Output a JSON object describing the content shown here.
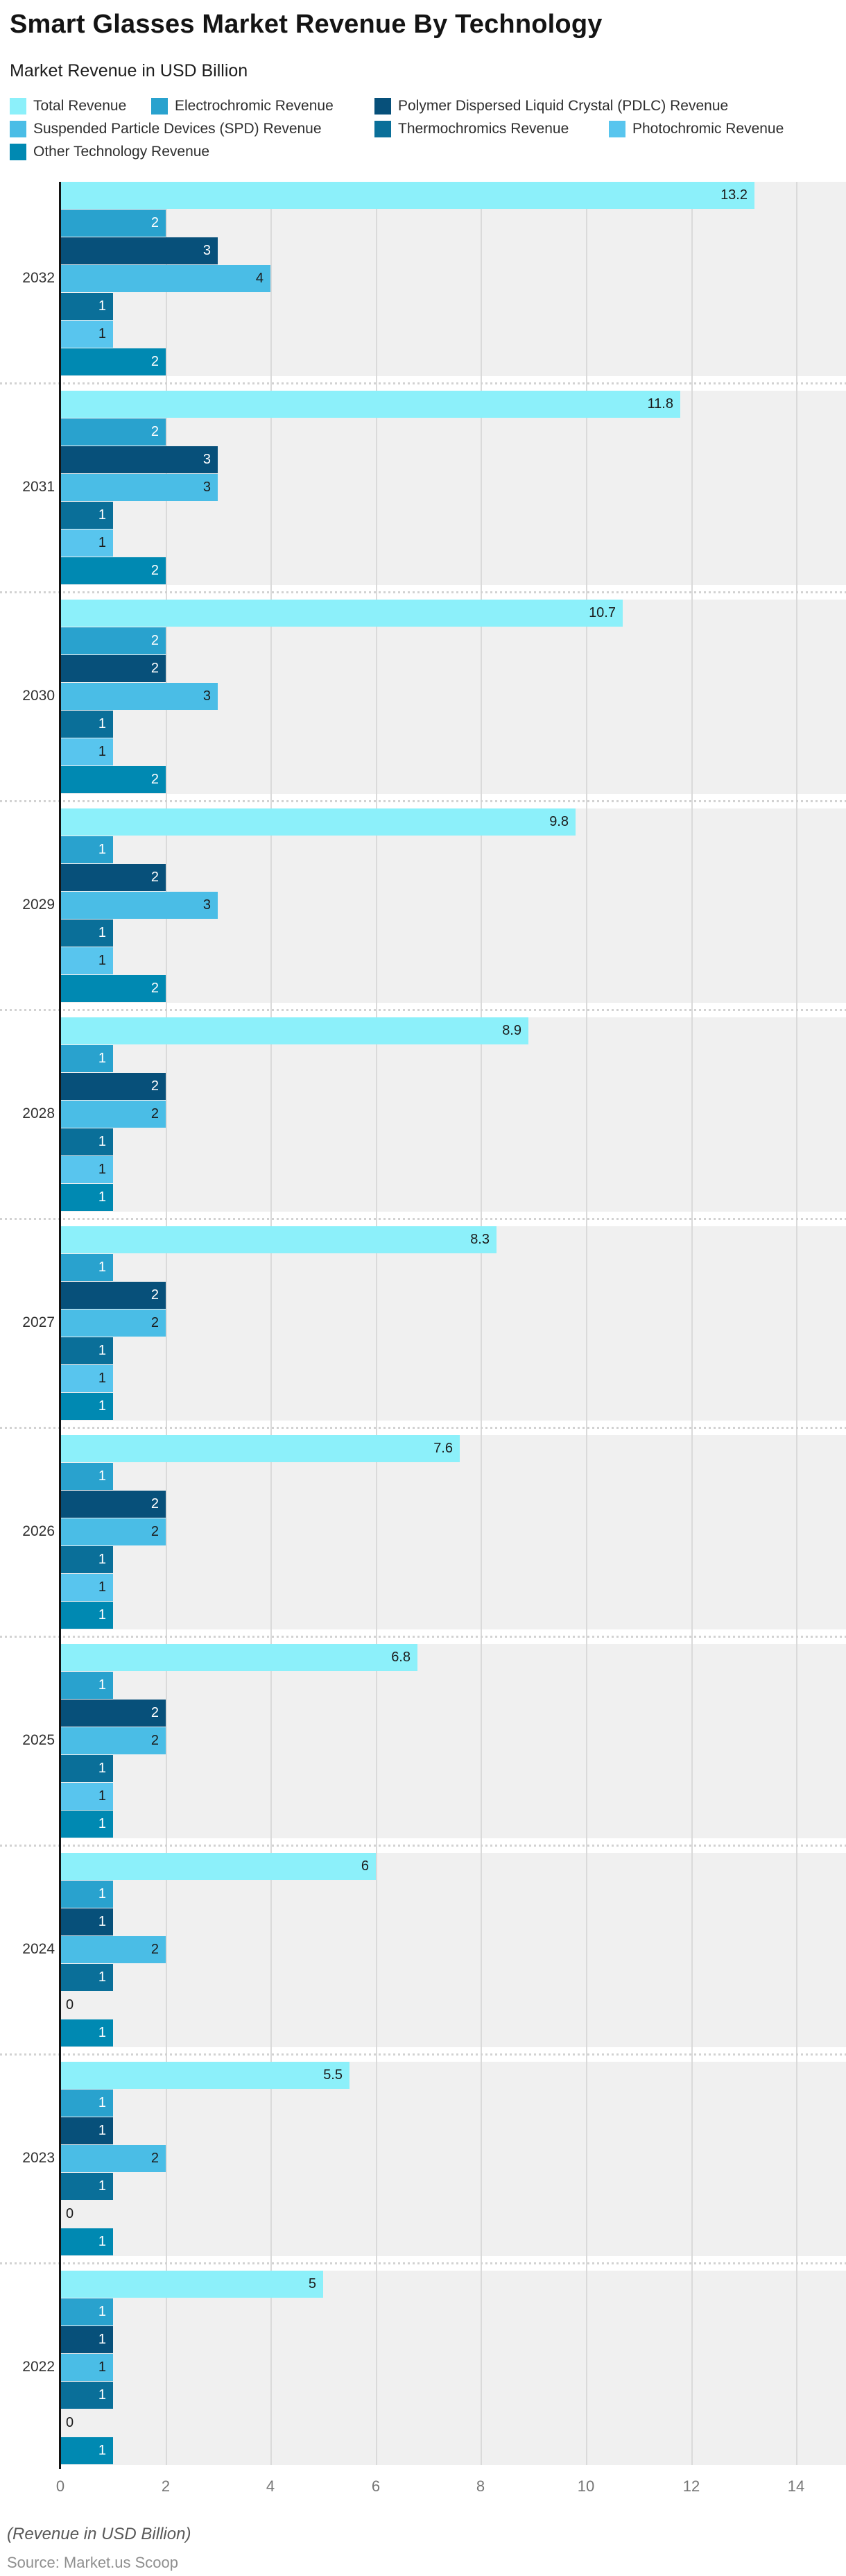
{
  "header": {
    "title": "Smart Glasses Market Revenue By Technology",
    "subtitle": "Market Revenue in USD Billion"
  },
  "footer": {
    "note": "(Revenue in USD Billion)",
    "source": "Source: Market.us Scoop"
  },
  "chart_data": {
    "type": "bar",
    "orientation": "horizontal",
    "unit": "USD Billion",
    "xlabel": "",
    "ylabel": "",
    "xlim": [
      0,
      14
    ],
    "x_ticks": [
      0,
      2,
      4,
      6,
      8,
      10,
      12,
      14
    ],
    "grid": true,
    "legend_position": "top",
    "series": [
      {
        "name": "Total Revenue",
        "color": "#8CF0FA",
        "label_style": "dark",
        "legend_row": 0
      },
      {
        "name": "Electrochromic Revenue",
        "color": "#29A2CE",
        "label_style": "light",
        "legend_row": 0
      },
      {
        "name": "Polymer Dispersed Liquid Crystal (PDLC) Revenue",
        "color": "#07507A",
        "label_style": "light",
        "legend_row": 0
      },
      {
        "name": "Suspended Particle Devices (SPD) Revenue",
        "color": "#4ABDE6",
        "label_style": "dark",
        "legend_row": 1
      },
      {
        "name": "Thermochromics Revenue",
        "color": "#0A6F99",
        "label_style": "light",
        "legend_row": 1
      },
      {
        "name": "Photochromic Revenue",
        "color": "#58C5EE",
        "label_style": "dark",
        "legend_row": 1
      },
      {
        "name": "Other Technology Revenue",
        "color": "#0089B2",
        "label_style": "light",
        "legend_row": 2
      }
    ],
    "categories": [
      "2032",
      "2031",
      "2030",
      "2029",
      "2028",
      "2027",
      "2026",
      "2025",
      "2024",
      "2023",
      "2022"
    ],
    "values_by_year": [
      {
        "year": "2032",
        "values": [
          13.2,
          2,
          3,
          4,
          1,
          1,
          2
        ]
      },
      {
        "year": "2031",
        "values": [
          11.8,
          2,
          3,
          3,
          1,
          1,
          2
        ]
      },
      {
        "year": "2030",
        "values": [
          10.7,
          2,
          2,
          3,
          1,
          1,
          2
        ]
      },
      {
        "year": "2029",
        "values": [
          9.8,
          1,
          2,
          3,
          1,
          1,
          2
        ]
      },
      {
        "year": "2028",
        "values": [
          8.9,
          1,
          2,
          2,
          1,
          1,
          1
        ]
      },
      {
        "year": "2027",
        "values": [
          8.3,
          1,
          2,
          2,
          1,
          1,
          1
        ]
      },
      {
        "year": "2026",
        "values": [
          7.6,
          1,
          2,
          2,
          1,
          1,
          1
        ]
      },
      {
        "year": "2025",
        "values": [
          6.8,
          1,
          2,
          2,
          1,
          1,
          1
        ]
      },
      {
        "year": "2024",
        "values": [
          6,
          1,
          1,
          2,
          1,
          0,
          1
        ]
      },
      {
        "year": "2023",
        "values": [
          5.5,
          1,
          1,
          2,
          1,
          0,
          1
        ]
      },
      {
        "year": "2022",
        "values": [
          5,
          1,
          1,
          1,
          1,
          0,
          1
        ]
      }
    ],
    "colors": {
      "band_background": "#f0f0f0",
      "gridline": "#dadada",
      "axis_line": "#141414",
      "tick_label": "#757575"
    }
  }
}
